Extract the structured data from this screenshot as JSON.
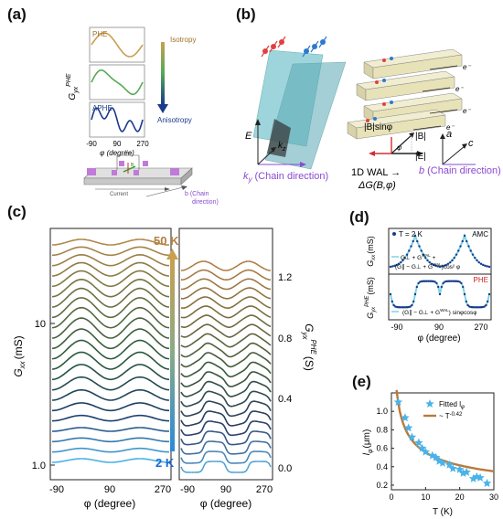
{
  "labels": {
    "a": "(a)",
    "b": "(b)",
    "c": "(c)",
    "d": "(d)",
    "e": "(e)"
  },
  "panel_a": {
    "ylabel": "G",
    "ylabel_sub": "yx",
    "ylabel_sup": "PHE",
    "phe": "PHE",
    "aphe": "APHE",
    "isotropy": "Isotropy",
    "anisotropy": "Anisotropy",
    "x_ticks": [
      "-90",
      "90",
      "270"
    ],
    "xlabel": "φ (degree)",
    "device_current": "Current",
    "device_vxx": "Vₓₓ",
    "device_b": "B",
    "device_chain_line1": "b (Chain",
    "device_chain_line2": "direction)",
    "colors": {
      "phe": "#c8a050",
      "middle": "#55aa55",
      "aphe": "#1a3a8a"
    }
  },
  "panel_b": {
    "e_label": "E",
    "kz_label": "k",
    "kz_sub": "z",
    "ky_label": "k",
    "ky_sub": "y",
    "ky_text": "(Chain direction)",
    "e_minus": "e⁻",
    "b_sin": "|B|sinφ",
    "b_abs": "|B|",
    "e_abs": "|E|",
    "phi": "φ",
    "wal_line1": "1D WAL →",
    "wal_line2": "ΔG(B,φ)",
    "axis_a": "a",
    "axis_c": "c",
    "axis_b": "b",
    "axis_b_text": "(Chain direction)"
  },
  "panel_c": {
    "left_ylabel": "G",
    "left_ylabel_sub": "xx",
    "left_ylabel_unit": "(mS)",
    "left_y_ticks": [
      "10",
      "1.0"
    ],
    "right_ylabel": "G",
    "right_ylabel_sub": "yx",
    "right_ylabel_sup": "PHE",
    "right_ylabel_unit": "(S)",
    "right_y_ticks": [
      "1.2",
      "0.8",
      "0.4",
      "0.0"
    ],
    "x_ticks": [
      "-90",
      "90",
      "270"
    ],
    "xlabel": "φ (degree)",
    "temp_top": "50 K",
    "temp_bottom": "2 K"
  },
  "panel_d": {
    "temp": "T = 2 K",
    "amc": "AMC",
    "phe": "PHE",
    "top_ylabel": "G",
    "top_ylabel_sub": "xx",
    "top_ylabel_unit": "(mS)",
    "bottom_ylabel": "G",
    "bottom_ylabel_sub": "yx",
    "bottom_ylabel_sup": "PHE",
    "bottom_ylabel_unit": "(mS)",
    "legend_top_1": "G⊥ + G",
    "legend_top_1_sup": "WAL",
    "legend_top_1_tail": " +",
    "legend_top_2": "(G∥ − G⊥ + G",
    "legend_top_2_sup": "WAL",
    "legend_top_2_tail": ")cos² φ",
    "legend_bottom": "(G∥ − G⊥ + G",
    "legend_bottom_sup": "WAL",
    "legend_bottom_tail": ") sinφcosφ",
    "x_ticks": [
      "-90",
      "90",
      "270"
    ],
    "xlabel": "φ (degree)",
    "colors": {
      "data": "#1a3a8a",
      "fit": "#7fd4e0",
      "phe": "#cc2222"
    }
  },
  "panel_e": {
    "ylabel": "l",
    "ylabel_sub": "φ",
    "ylabel_unit": "(μm)",
    "xlabel": "T (K)",
    "legend_stars": "Fitted l",
    "legend_stars_sub": "φ",
    "legend_line": "~ T",
    "legend_line_sup": "-0.42",
    "y_ticks": [
      "1.0",
      "0.8",
      "0.6",
      "0.4",
      "0.2"
    ],
    "x_ticks": [
      "0",
      "10",
      "20",
      "30"
    ],
    "colors": {
      "star": "#4ab3e8",
      "line": "#b87a3a"
    }
  },
  "chart_data": [
    {
      "type": "scatter",
      "title": "",
      "xlabel": "T (K)",
      "ylabel": "lφ (μm)",
      "xlim": [
        0,
        30
      ],
      "ylim": [
        0.15,
        1.2
      ],
      "series": [
        {
          "name": "Fitted lφ",
          "x": [
            2,
            4,
            5,
            6,
            8,
            9,
            10,
            12,
            13,
            14,
            15,
            17,
            18,
            20,
            21,
            22,
            24,
            25,
            26,
            28
          ],
          "y": [
            1.1,
            0.93,
            0.82,
            0.72,
            0.66,
            0.6,
            0.56,
            0.52,
            0.5,
            0.46,
            0.44,
            0.42,
            0.38,
            0.37,
            0.33,
            0.34,
            0.27,
            0.29,
            0.28,
            0.22
          ]
        },
        {
          "name": "~ T^-0.42",
          "exponent": -0.42,
          "prefactor": 1.46
        }
      ]
    }
  ]
}
